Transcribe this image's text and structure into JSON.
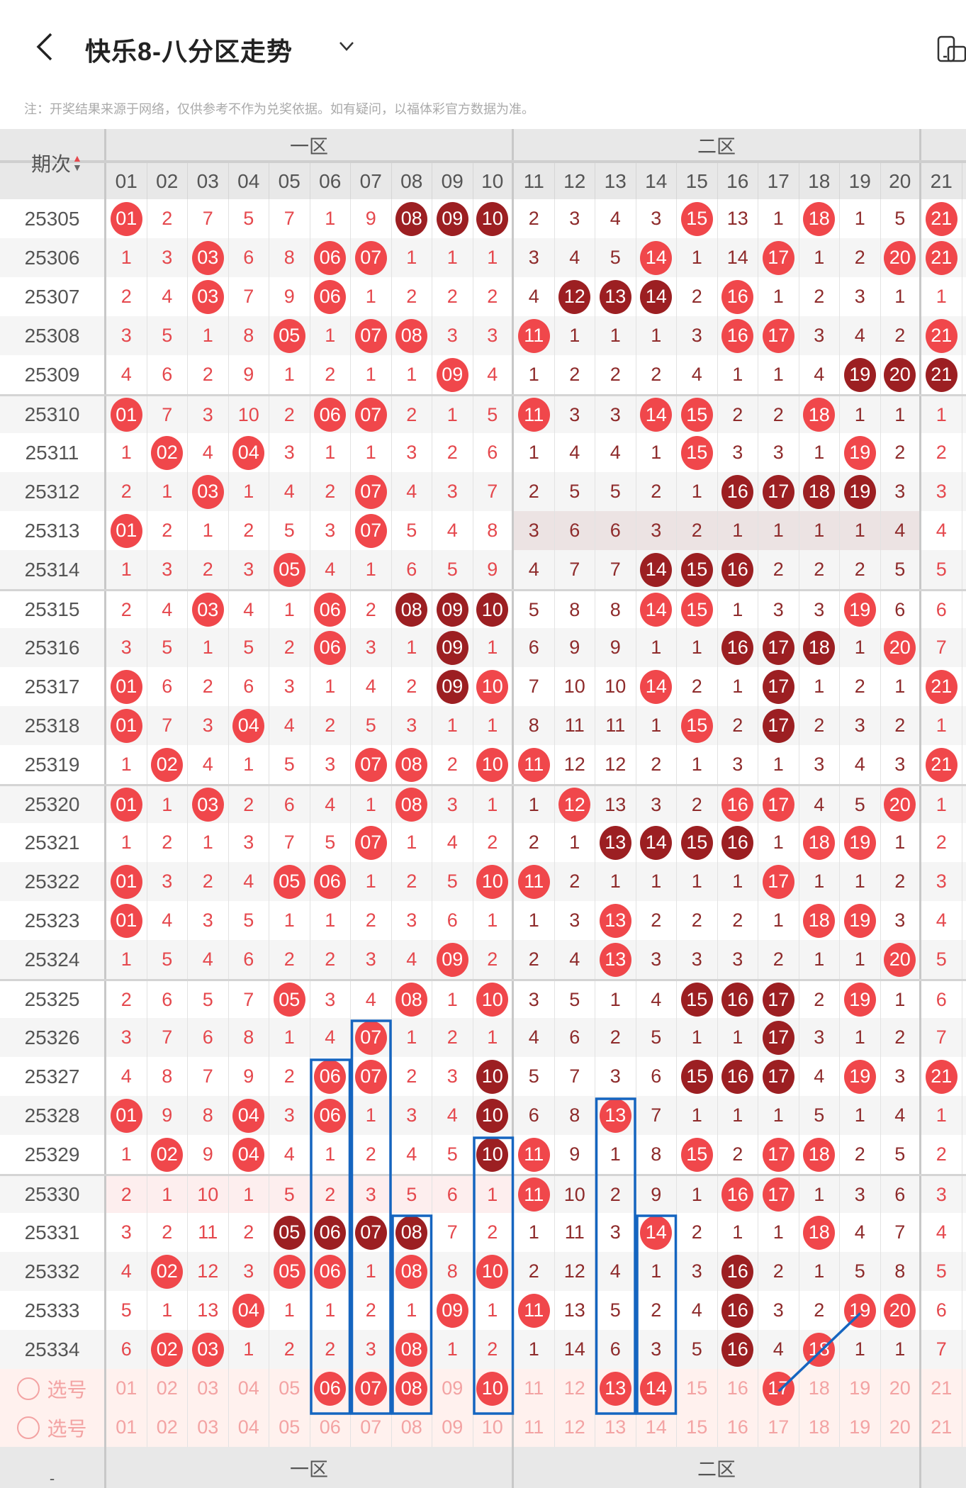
{
  "header": {
    "title": "快乐8-八分区走势",
    "back_icon": "chevron-left-icon",
    "dropdown_icon": "chevron-down-icon",
    "device_icon": "device-icon"
  },
  "note": "注：开奖结果来源于网络，仅供参考不作为兑奖依据。如有疑问，以福体彩官方数据为准。",
  "table": {
    "period_label": "期次",
    "zones": [
      "一区",
      "二区",
      ""
    ],
    "columns": [
      "01",
      "02",
      "03",
      "04",
      "05",
      "06",
      "07",
      "08",
      "09",
      "10",
      "11",
      "12",
      "13",
      "14",
      "15",
      "16",
      "17",
      "18",
      "19",
      "20",
      "21"
    ],
    "legend": "@ = drawn number (red ball), # = consecutive drawn (dark ball), plain = omission count",
    "rows": [
      {
        "period": "25305",
        "cells": "@01 2 7 5 7 1 9 #08 #09 #10 2 3 4 3 @15 13 1 @18 1 5 @21"
      },
      {
        "period": "25306",
        "cells": "1 3 @03 6 8 @06 @07 1 1 1 3 4 5 @14 1 14 @17 1 2 @20 @21"
      },
      {
        "period": "25307",
        "cells": "2 4 @03 7 9 @06 1 2 2 2 4 #12 #13 #14 2 @16 1 2 3 1 1"
      },
      {
        "period": "25308",
        "cells": "3 5 1 8 @05 1 @07 @08 3 3 @11 1 1 1 3 @16 @17 3 4 2 @21"
      },
      {
        "period": "25309",
        "cells": "4 6 2 9 1 2 1 1 @09 4 1 2 2 2 4 1 1 4 #19 #20 #21"
      },
      {
        "period": "25310",
        "cells": "@01 7 3 10 2 @06 @07 2 1 5 @11 3 3 @14 @15 2 2 @18 1 1 1"
      },
      {
        "period": "25311",
        "cells": "1 @02 4 @04 3 1 1 3 2 6 1 4 4 1 @15 3 3 1 @19 2 2"
      },
      {
        "period": "25312",
        "cells": "2 1 @03 1 4 2 @07 4 3 7 2 5 5 2 1 #16 #17 #18 #19 3 3"
      },
      {
        "period": "25313",
        "cells": "@01 2 1 2 5 3 @07 5 4 8 3 6 6 3 2 1 1 1 1 4 4",
        "shade": "zone2"
      },
      {
        "period": "25314",
        "cells": "1 3 2 3 @05 4 1 6 5 9 4 7 7 #14 #15 #16 2 2 2 5 5"
      },
      {
        "period": "25315",
        "cells": "2 4 @03 4 1 @06 2 #08 #09 #10 5 8 8 @14 @15 1 3 3 @19 6 6"
      },
      {
        "period": "25316",
        "cells": "3 5 1 5 2 @06 3 1 #09 1 6 9 9 1 1 #16 #17 #18 1 @20 7"
      },
      {
        "period": "25317",
        "cells": "@01 6 2 6 3 1 4 2 #09 @10 7 10 10 @14 2 1 #17 1 2 1 @21"
      },
      {
        "period": "25318",
        "cells": "@01 7 3 @04 4 2 5 3 1 1 8 11 11 1 @15 2 #17 2 3 2 1"
      },
      {
        "period": "25319",
        "cells": "1 @02 4 1 5 3 @07 @08 2 @10 @11 12 12 2 1 3 1 3 4 3 @21"
      },
      {
        "period": "25320",
        "cells": "@01 1 @03 2 6 4 1 @08 3 1 1 @12 13 3 2 @16 @17 4 5 @20 1"
      },
      {
        "period": "25321",
        "cells": "1 2 1 3 7 5 @07 1 4 2 2 1 #13 #14 #15 #16 1 @18 @19 1 2"
      },
      {
        "period": "25322",
        "cells": "@01 3 2 4 @05 @06 1 2 5 @10 @11 2 1 1 1 1 @17 1 1 2 3"
      },
      {
        "period": "25323",
        "cells": "@01 4 3 5 1 1 2 3 6 1 1 3 @13 2 2 2 1 @18 @19 3 4"
      },
      {
        "period": "25324",
        "cells": "1 5 4 6 2 2 3 4 @09 2 2 4 @13 3 3 3 2 1 1 @20 5"
      },
      {
        "period": "25325",
        "cells": "2 6 5 7 @05 3 4 @08 1 @10 3 5 1 4 #15 #16 #17 2 @19 1 6"
      },
      {
        "period": "25326",
        "cells": "3 7 6 8 1 4 @07 1 2 1 4 6 2 5 1 1 #17 3 1 2 7"
      },
      {
        "period": "25327",
        "cells": "4 8 7 9 2 @06 @07 2 3 #10 5 7 3 6 #15 #16 #17 4 @19 3 @21"
      },
      {
        "period": "25328",
        "cells": "@01 9 8 @04 3 @06 1 3 4 #10 6 8 @13 7 1 1 1 5 1 4 1"
      },
      {
        "period": "25329",
        "cells": "1 @02 9 @04 4 1 2 4 5 #10 @11 9 1 8 @15 2 @17 @18 2 5 2"
      },
      {
        "period": "25330",
        "cells": "2 1 10 1 5 2 3 5 6 1 @11 10 2 9 1 @16 @17 1 3 6 3",
        "shade": "zone1"
      },
      {
        "period": "25331",
        "cells": "3 2 11 2 #05 #06 #07 #08 7 2 1 11 3 @14 2 1 1 @18 4 7 4"
      },
      {
        "period": "25332",
        "cells": "4 @02 12 3 @05 @06 1 @08 8 @10 2 12 4 1 3 #16 2 1 5 8 5"
      },
      {
        "period": "25333",
        "cells": "5 1 13 @04 1 1 2 1 @09 1 @11 13 5 2 4 #16 3 2 @19 @20 6"
      },
      {
        "period": "25334",
        "cells": "6 @02 @03 1 2 2 3 @08 1 2 1 14 6 3 5 #16 4 @18 1 1 7"
      }
    ],
    "pick_rows": [
      {
        "label": "选号",
        "selected": [
          "06",
          "07",
          "08",
          "10",
          "13",
          "14",
          "17"
        ]
      },
      {
        "label": "选号",
        "selected": []
      }
    ],
    "footer": {
      "left": "-",
      "zones": [
        "一区",
        "二区",
        ""
      ]
    }
  },
  "annotations": {
    "boxes": [
      {
        "column": "06",
        "from": "25327"
      },
      {
        "column": "07",
        "from": "25326"
      },
      {
        "column": "08",
        "from": "25331"
      },
      {
        "column": "10",
        "from": "25329"
      },
      {
        "column": "13",
        "from": "25328"
      },
      {
        "column": "14",
        "from": "25331"
      }
    ],
    "line": {
      "from_column": "17",
      "to_column": "19",
      "to_period": "25333"
    },
    "color": "#1565c0"
  },
  "colors": {
    "ball": "#f0474b",
    "ball_dark": "#9c1f22",
    "zone1_text": "#e5484d",
    "zone2_text": "#8e2b2b"
  }
}
